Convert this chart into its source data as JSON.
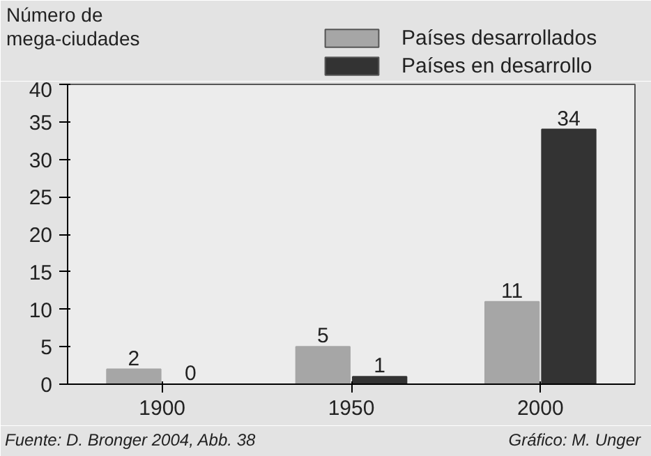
{
  "chart_data": {
    "type": "bar",
    "ylabel": "Número de\nmega-ciudades",
    "categories": [
      "1900",
      "1950",
      "2000"
    ],
    "series": [
      {
        "name": "Países desarrollados",
        "color": "#a6a6a6",
        "values": [
          2,
          5,
          11
        ]
      },
      {
        "name": "Países en desarrollo",
        "color": "#333333",
        "values": [
          0,
          1,
          34
        ]
      }
    ],
    "ylim": [
      0,
      40
    ],
    "yticks": [
      0,
      5,
      10,
      15,
      20,
      25,
      30,
      35,
      40
    ],
    "grid": false,
    "legend": "top right",
    "data_labels": true,
    "annotations": [
      "Fuente: D. Bronger 2004, Abb. 38",
      "Gráfico: M. Unger"
    ]
  }
}
